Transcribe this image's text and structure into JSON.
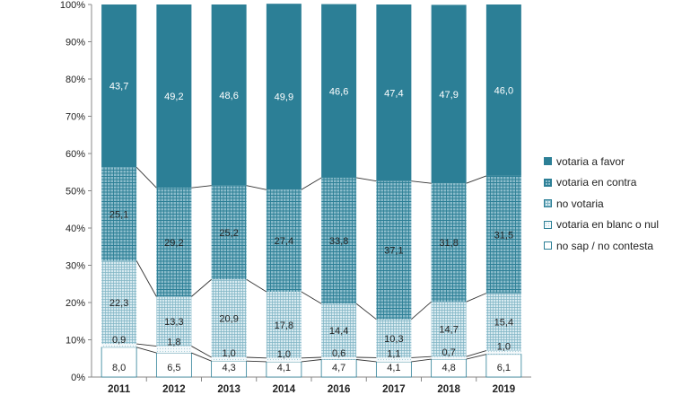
{
  "chart_data": {
    "type": "bar",
    "stacked": true,
    "categories": [
      "2011",
      "2012",
      "2013",
      "2014",
      "2016",
      "2017",
      "2018",
      "2019"
    ],
    "ylim": [
      0,
      100
    ],
    "yticks": [
      "0%",
      "10%",
      "20%",
      "30%",
      "40%",
      "50%",
      "60%",
      "70%",
      "80%",
      "90%",
      "100%"
    ],
    "series": [
      {
        "name": "no sap / no contesta",
        "pattern": "plain",
        "values": [
          8.0,
          6.5,
          4.3,
          4.1,
          4.7,
          4.1,
          4.8,
          6.1
        ],
        "labels": [
          "8,0",
          "6,5",
          "4,3",
          "4,1",
          "4,7",
          "4,1",
          "4,8",
          "6,1"
        ]
      },
      {
        "name": "votaria en blanc o nul",
        "pattern": "light-dots",
        "values": [
          0.9,
          1.8,
          1.0,
          1.0,
          0.6,
          1.1,
          0.7,
          1.0
        ],
        "labels": [
          "0,9",
          "1,8",
          "1,0",
          "1,0",
          "0,6",
          "1,1",
          "0,7",
          "1,0"
        ]
      },
      {
        "name": "no votaria",
        "pattern": "fine-grid",
        "values": [
          22.3,
          13.3,
          20.9,
          17.8,
          14.4,
          10.3,
          14.7,
          15.4
        ],
        "labels": [
          "22,3",
          "13,3",
          "20,9",
          "17,8",
          "14,4",
          "10,3",
          "14,7",
          "15,4"
        ]
      },
      {
        "name": "votaria en contra",
        "pattern": "grid",
        "values": [
          25.1,
          29.2,
          25.2,
          27.4,
          33.8,
          37.1,
          31.8,
          31.5
        ],
        "labels": [
          "25,1",
          "29,2",
          "25,2",
          "27,4",
          "33,8",
          "37,1",
          "31,8",
          "31,5"
        ]
      },
      {
        "name": "votaria a favor",
        "pattern": "solid",
        "values": [
          43.7,
          49.2,
          48.6,
          49.9,
          46.6,
          47.4,
          47.9,
          46.0
        ],
        "labels": [
          "43,7",
          "49,2",
          "48,6",
          "49,9",
          "46,6",
          "47,4",
          "47,9",
          "46,0"
        ]
      }
    ],
    "legend": [
      "votaria a favor",
      "votaria en contra",
      "no votaria",
      "votaria en blanc o nul",
      "no sap / no contesta"
    ],
    "legend_position": "right",
    "connector_lines": true,
    "colors": {
      "teal": "#2c7f96",
      "axis": "#888888",
      "text": "#222222"
    }
  }
}
